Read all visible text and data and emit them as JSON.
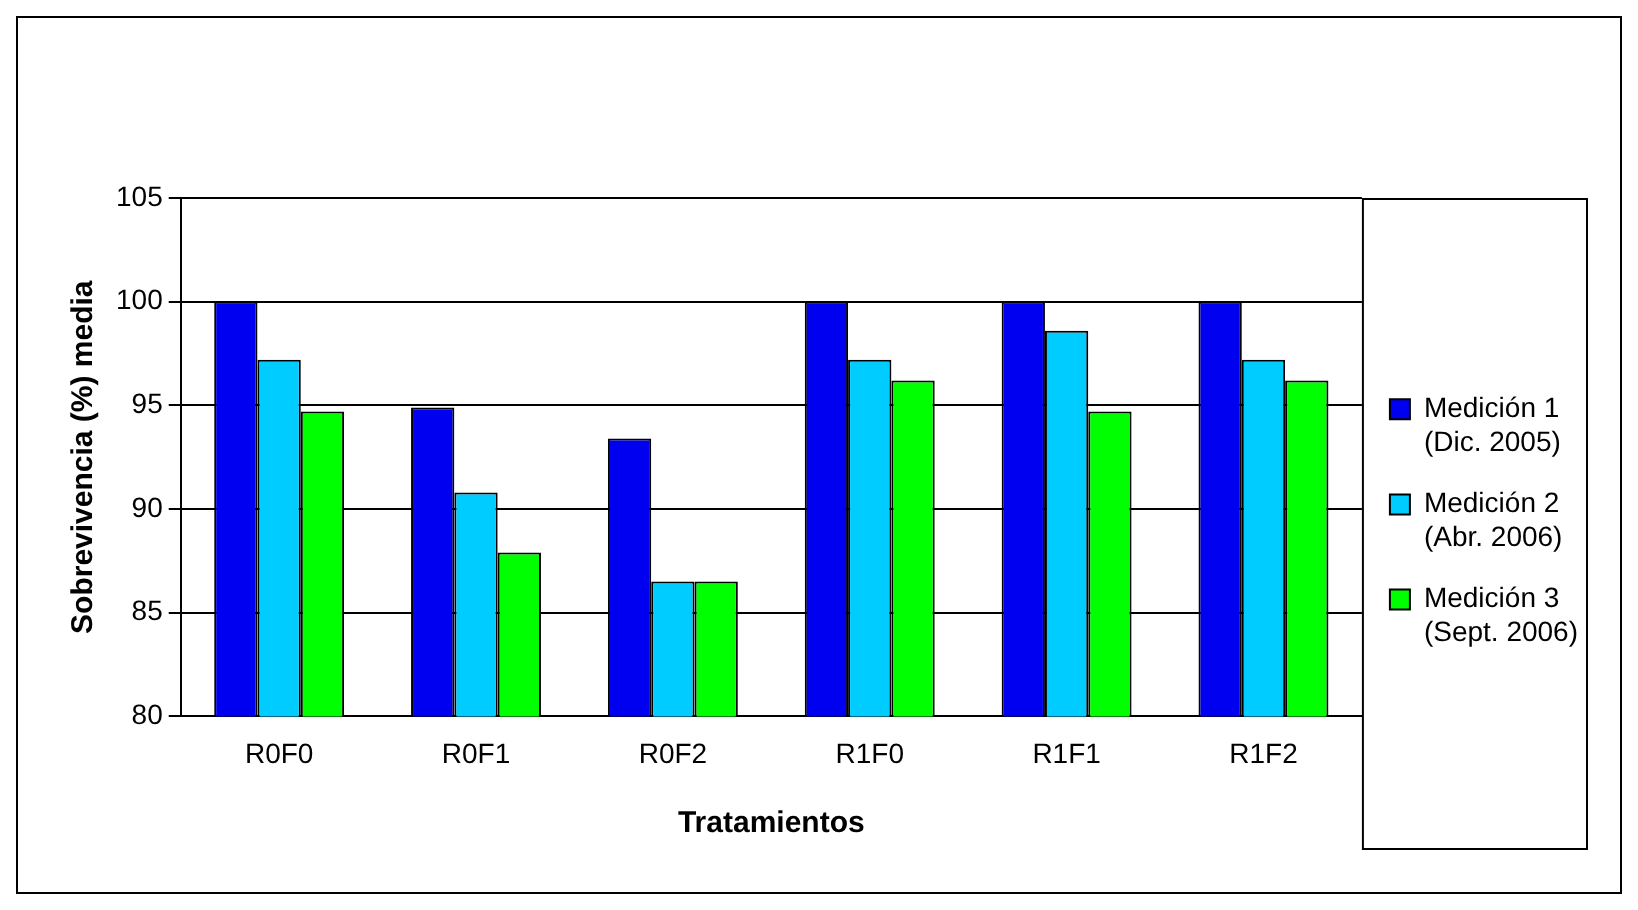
{
  "chart_data": {
    "type": "bar",
    "xlabel": "Tratamientos",
    "ylabel": "Sobrevivencia (%) media",
    "categories": [
      "R0F0",
      "R0F1",
      "R0F2",
      "R1F0",
      "R1F1",
      "R1F2"
    ],
    "series": [
      {
        "name": "Medición 1\n(Dic. 2005)",
        "color": "#0000f0",
        "values": [
          100,
          94.9,
          93.4,
          100,
          100,
          100
        ]
      },
      {
        "name": "Medición 2\n(Abr. 2006)",
        "color": "#00ccff",
        "values": [
          97.2,
          90.8,
          86.5,
          97.2,
          98.6,
          97.2
        ]
      },
      {
        "name": "Medición 3\n(Sept. 2006)",
        "color": "#00ff00",
        "values": [
          94.7,
          87.9,
          86.5,
          96.2,
          94.7,
          96.2
        ]
      }
    ],
    "ylim": [
      80,
      105
    ],
    "yticks": [
      80,
      85,
      90,
      95,
      100,
      105
    ],
    "grid": "y",
    "legend": "right"
  }
}
